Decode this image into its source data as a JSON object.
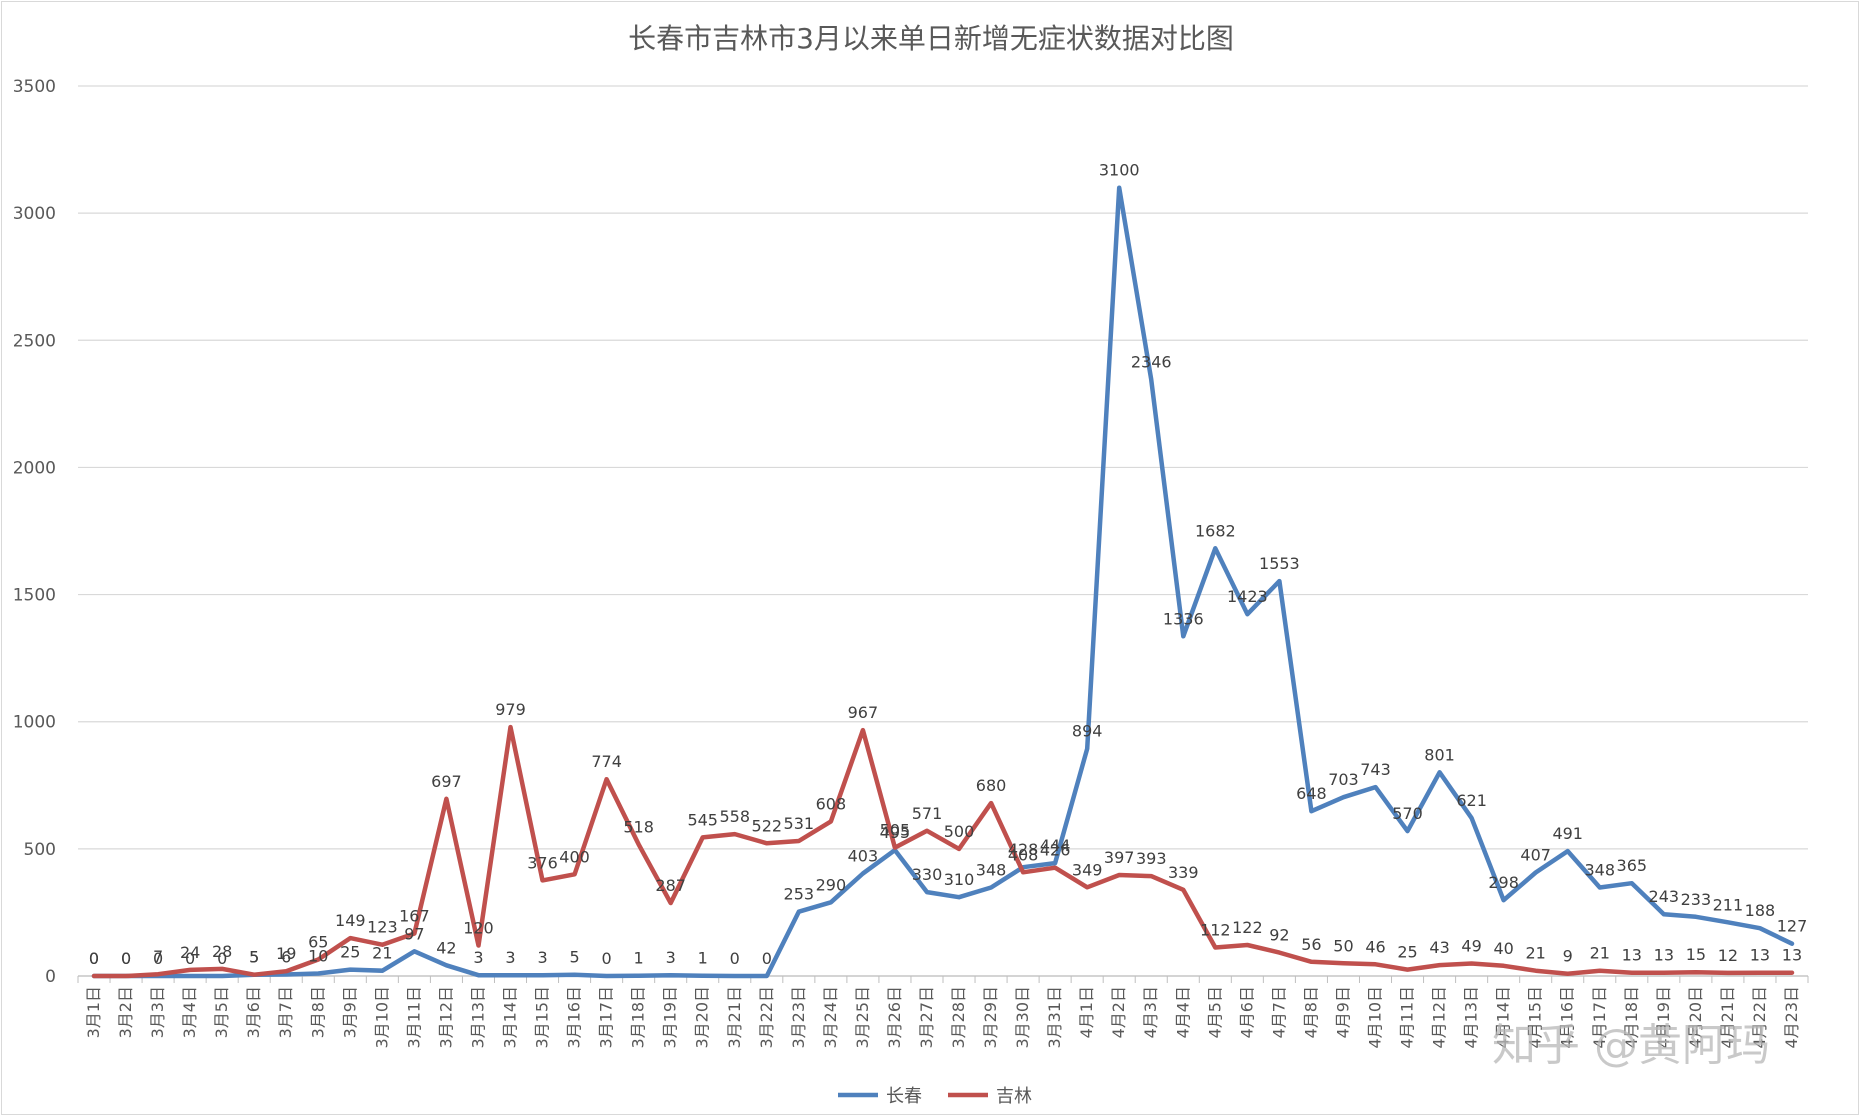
{
  "chart_data": {
    "type": "line",
    "title": "长春市吉林市3月以来单日新增无症状数据对比图",
    "xlabel": "",
    "ylabel": "",
    "ylim": [
      0,
      3500
    ],
    "yticks": [
      "0",
      "500",
      "1000",
      "1500",
      "2000",
      "2500",
      "3000",
      "3500"
    ],
    "grid": true,
    "legend": "bottom",
    "categories": [
      "3月1日",
      "3月2日",
      "3月3日",
      "3月4日",
      "3月5日",
      "3月6日",
      "3月7日",
      "3月8日",
      "3月9日",
      "3月10日",
      "3月11日",
      "3月12日",
      "3月13日",
      "3月14日",
      "3月15日",
      "3月16日",
      "3月17日",
      "3月18日",
      "3月19日",
      "3月20日",
      "3月21日",
      "3月22日",
      "3月23日",
      "3月24日",
      "3月25日",
      "3月26日",
      "3月27日",
      "3月28日",
      "3月29日",
      "3月30日",
      "3月31日",
      "4月1日",
      "4月2日",
      "4月3日",
      "4月4日",
      "4月5日",
      "4月6日",
      "4月7日",
      "4月8日",
      "4月9日",
      "4月10日",
      "4月11日",
      "4月12日",
      "4月13日",
      "4月14日",
      "4月15日",
      "4月16日",
      "4月17日",
      "4月18日",
      "4月19日",
      "4月20日",
      "4月21日",
      "4月22日",
      "4月23日"
    ],
    "series": [
      {
        "name": "长春",
        "color": "#4f81bd",
        "values": [
          0,
          0,
          0,
          0,
          0,
          5,
          6,
          10,
          25,
          21,
          97,
          42,
          3,
          3,
          3,
          5,
          0,
          1,
          3,
          1,
          0,
          0,
          253,
          290,
          403,
          495,
          330,
          310,
          348,
          428,
          444,
          894,
          3100,
          2346,
          1336,
          1682,
          1423,
          1553,
          648,
          703,
          743,
          570,
          801,
          621,
          298,
          407,
          491,
          348,
          365,
          243,
          233,
          211,
          188,
          127
        ]
      },
      {
        "name": "吉林",
        "color": "#c0504d",
        "values": [
          0,
          0,
          7,
          24,
          28,
          5,
          19,
          65,
          149,
          123,
          167,
          697,
          120,
          979,
          376,
          400,
          774,
          518,
          287,
          545,
          558,
          522,
          531,
          608,
          967,
          505,
          571,
          500,
          680,
          408,
          426,
          349,
          397,
          393,
          339,
          112,
          122,
          92,
          56,
          50,
          46,
          25,
          43,
          49,
          40,
          21,
          9,
          21,
          13,
          13,
          15,
          12,
          13,
          13
        ]
      }
    ]
  },
  "watermark": {
    "text": "知乎 @黄阿玛",
    "color": "#b8b8b8"
  }
}
